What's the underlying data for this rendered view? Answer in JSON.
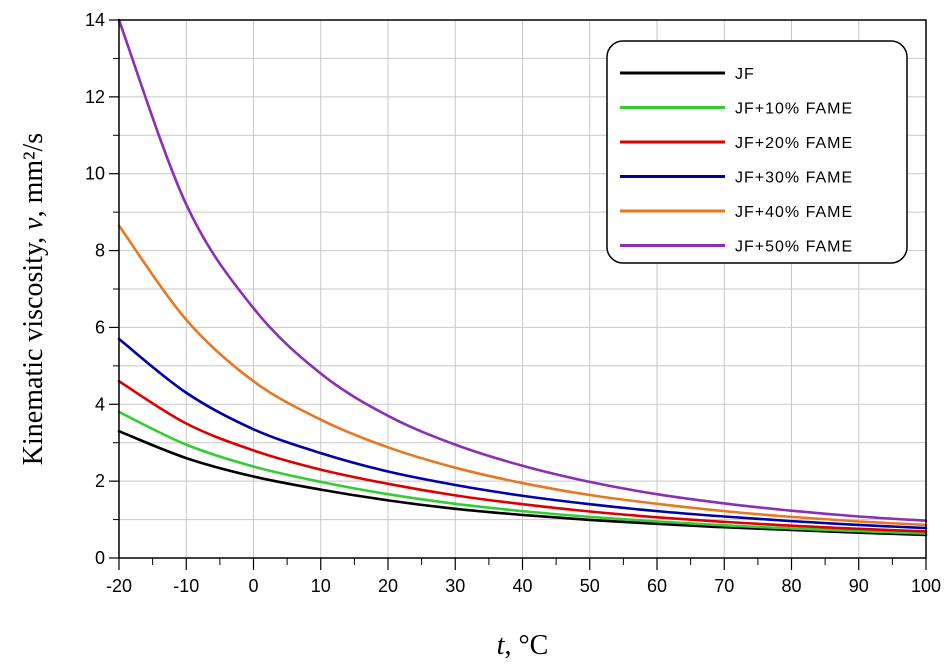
{
  "chart_data": {
    "type": "line",
    "title": "",
    "xlabel": {
      "var": "t",
      "unit": ", °C"
    },
    "ylabel": {
      "text": "Kinematic viscosity,",
      "symbol": "ν",
      "unit": ", mm²/s"
    },
    "xlim": [
      -20,
      100
    ],
    "ylim": [
      0,
      14
    ],
    "x_ticks": [
      -20,
      -10,
      0,
      10,
      20,
      30,
      40,
      50,
      60,
      70,
      80,
      90,
      100
    ],
    "y_ticks": [
      0,
      2,
      4,
      6,
      8,
      10,
      12,
      14
    ],
    "grid": true,
    "legend_position": "top-right",
    "x": [
      -20,
      -10,
      0,
      10,
      20,
      30,
      40,
      50,
      60,
      70,
      80,
      90,
      100
    ],
    "series": [
      {
        "name": "JF",
        "color": "#000000",
        "values": [
          3.3,
          2.6,
          2.12,
          1.78,
          1.5,
          1.28,
          1.12,
          0.99,
          0.89,
          0.8,
          0.73,
          0.66,
          0.6
        ]
      },
      {
        "name": "JF+10% FAME",
        "color": "#33cc33",
        "values": [
          3.8,
          2.95,
          2.38,
          1.98,
          1.66,
          1.41,
          1.22,
          1.07,
          0.95,
          0.85,
          0.77,
          0.7,
          0.64
        ]
      },
      {
        "name": "JF+20% FAME",
        "color": "#dd0000",
        "values": [
          4.6,
          3.5,
          2.8,
          2.3,
          1.93,
          1.63,
          1.4,
          1.21,
          1.06,
          0.94,
          0.84,
          0.76,
          0.69
        ]
      },
      {
        "name": "JF+30% FAME",
        "color": "#0000aa",
        "values": [
          5.7,
          4.3,
          3.35,
          2.73,
          2.25,
          1.9,
          1.62,
          1.4,
          1.22,
          1.08,
          0.96,
          0.86,
          0.78
        ]
      },
      {
        "name": "JF+40% FAME",
        "color": "#e87722",
        "values": [
          8.65,
          6.2,
          4.6,
          3.6,
          2.88,
          2.35,
          1.95,
          1.64,
          1.41,
          1.22,
          1.07,
          0.95,
          0.86
        ]
      },
      {
        "name": "JF+50% FAME",
        "color": "#8b2fb5",
        "values": [
          14.0,
          9.2,
          6.5,
          4.8,
          3.7,
          2.95,
          2.4,
          1.98,
          1.66,
          1.42,
          1.23,
          1.08,
          0.97
        ]
      }
    ]
  }
}
